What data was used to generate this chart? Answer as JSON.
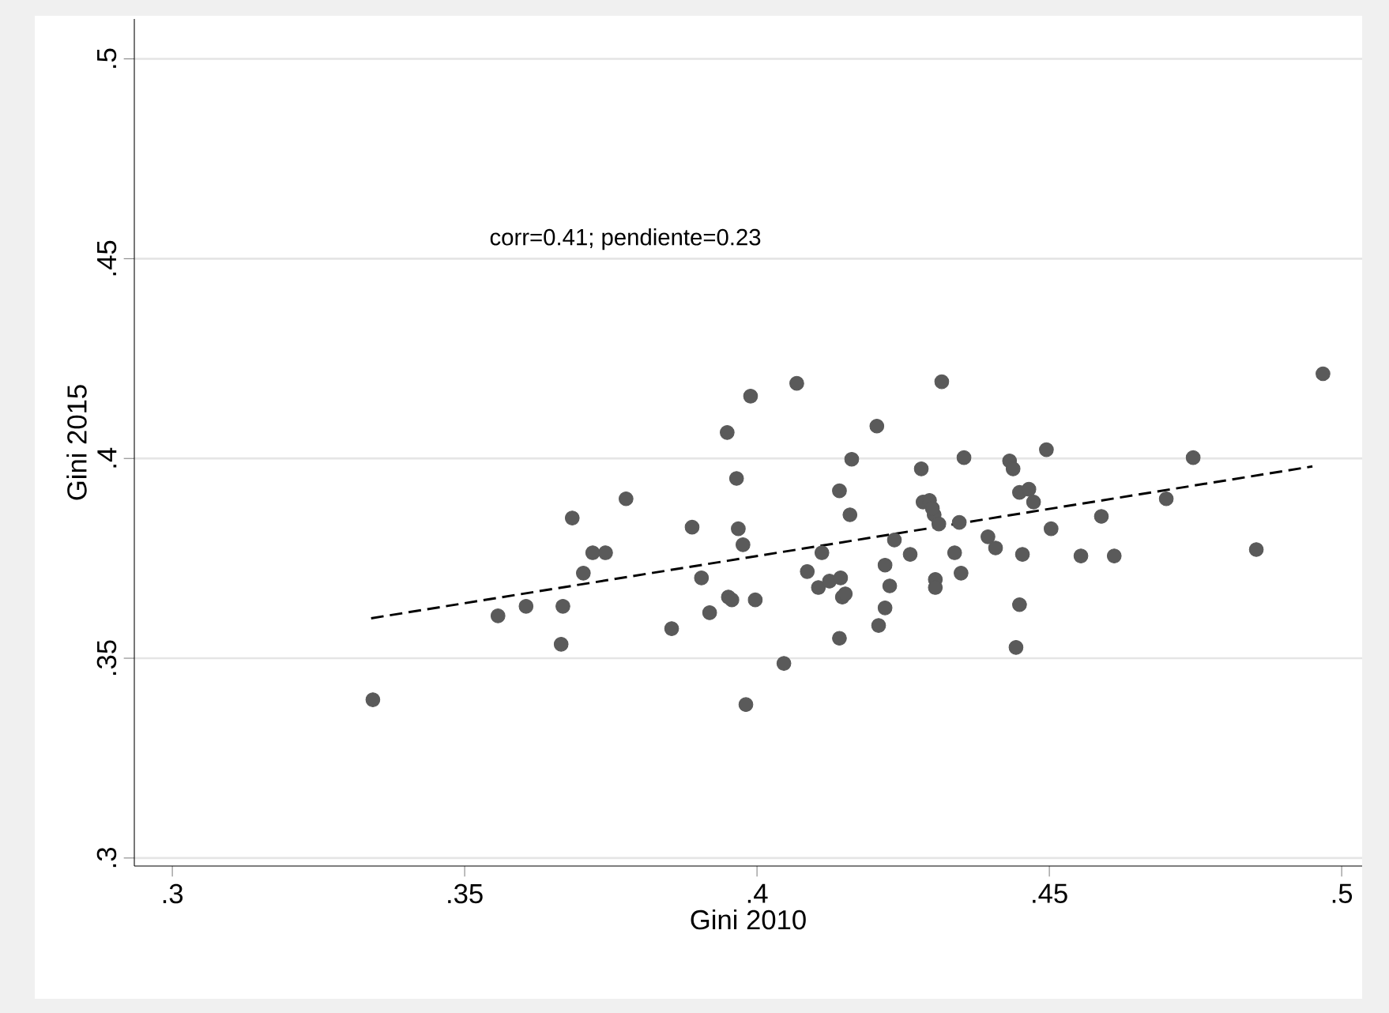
{
  "chart_data": {
    "type": "scatter",
    "xlabel": "Gini 2010",
    "ylabel": "Gini 2015",
    "annotations": [
      "corr=0.41; pendiente=0.23"
    ],
    "xlim": [
      0.2935,
      0.5035
    ],
    "ylim": [
      0.298,
      0.51
    ],
    "xticks": [
      {
        "value": 0.3,
        "label": ".3"
      },
      {
        "value": 0.35,
        "label": ".35"
      },
      {
        "value": 0.4,
        "label": ".4"
      },
      {
        "value": 0.45,
        "label": ".45"
      },
      {
        "value": 0.5,
        "label": ".5"
      }
    ],
    "yticks": [
      {
        "value": 0.3,
        "label": ".3"
      },
      {
        "value": 0.35,
        "label": ".35"
      },
      {
        "value": 0.4,
        "label": ".4"
      },
      {
        "value": 0.45,
        "label": ".45"
      },
      {
        "value": 0.5,
        "label": ".5"
      }
    ],
    "grid": "y",
    "series": [
      {
        "color": "#5a5a5a",
        "marker": "circle",
        "x": [
          0.3343,
          0.3557,
          0.3605,
          0.3665,
          0.3668,
          0.3684,
          0.3703,
          0.3719,
          0.3741,
          0.3776,
          0.3854,
          0.3889,
          0.3905,
          0.3919,
          0.3949,
          0.3951,
          0.3957,
          0.3965,
          0.3968,
          0.3976,
          0.3981,
          0.3989,
          0.3997,
          0.4046,
          0.4068,
          0.4086,
          0.4105,
          0.4111,
          0.4124,
          0.4141,
          0.4141,
          0.4143,
          0.4146,
          0.4151,
          0.4159,
          0.4162,
          0.4205,
          0.4208,
          0.4219,
          0.4219,
          0.4227,
          0.4235,
          0.4262,
          0.4281,
          0.4284,
          0.4295,
          0.4305,
          0.4303,
          0.43,
          0.4305,
          0.4311,
          0.4316,
          0.4338,
          0.4346,
          0.4349,
          0.4354,
          0.4395,
          0.4408,
          0.4432,
          0.4438,
          0.4443,
          0.4449,
          0.4449,
          0.4454,
          0.4465,
          0.4473,
          0.4495,
          0.4503,
          0.4554,
          0.4589,
          0.4611,
          0.47,
          0.4746,
          0.4854,
          0.4968
        ],
        "values": [
          0.3396,
          0.3606,
          0.363,
          0.3535,
          0.363,
          0.3851,
          0.3713,
          0.3764,
          0.3764,
          0.3899,
          0.3574,
          0.3828,
          0.3701,
          0.3614,
          0.4065,
          0.3653,
          0.3646,
          0.395,
          0.3824,
          0.3784,
          0.3384,
          0.4156,
          0.3646,
          0.3487,
          0.4188,
          0.3717,
          0.3677,
          0.3764,
          0.3693,
          0.3919,
          0.355,
          0.3701,
          0.3653,
          0.3661,
          0.3859,
          0.3998,
          0.4081,
          0.3582,
          0.3626,
          0.3733,
          0.3681,
          0.3796,
          0.376,
          0.3974,
          0.3891,
          0.3895,
          0.3697,
          0.3859,
          0.3875,
          0.3677,
          0.3836,
          0.4192,
          0.3764,
          0.384,
          0.3713,
          0.4002,
          0.3804,
          0.3776,
          0.3994,
          0.3974,
          0.3527,
          0.3634,
          0.3915,
          0.376,
          0.3923,
          0.3891,
          0.4022,
          0.3824,
          0.3756,
          0.3855,
          0.3756,
          0.3899,
          0.4002,
          0.3772,
          0.4212
        ]
      },
      {
        "type": "line",
        "color": "#000000",
        "line_style": "dashed",
        "marker": "none",
        "x": [
          0.334,
          0.495
        ],
        "values": [
          0.36,
          0.398
        ]
      }
    ]
  }
}
